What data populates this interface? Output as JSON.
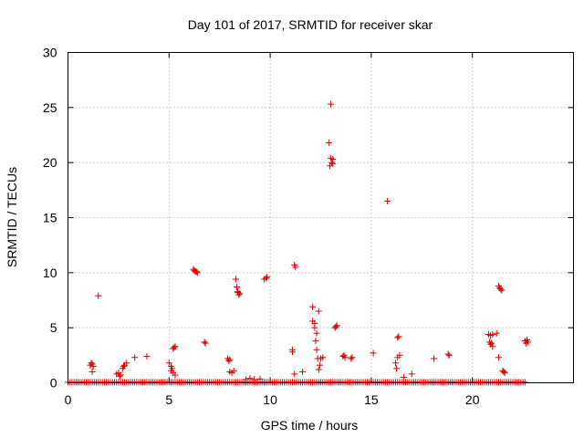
{
  "chart_data": {
    "type": "scatter",
    "title": "Day 101 of 2017, SRMTID for receiver skar",
    "xlabel": "GPS time / hours",
    "ylabel": "SRMTID / TECUs",
    "xlim": [
      0,
      25
    ],
    "ylim": [
      0,
      30
    ],
    "xticks": [
      "0",
      "5",
      "10",
      "15",
      "20"
    ],
    "xtick_values": [
      0,
      5,
      10,
      15,
      20
    ],
    "yticks": [
      "0",
      "5",
      "10",
      "15",
      "20",
      "25",
      "30"
    ],
    "ytick_values": [
      0,
      5,
      10,
      15,
      20,
      25,
      30
    ],
    "grid": true,
    "legend": "none",
    "marker": "+",
    "color": "#e00000",
    "baseline": {
      "x_start": 0.0,
      "x_end": 22.6,
      "step": 0.1,
      "y": 0.05
    },
    "points": [
      [
        1.1,
        1.6
      ],
      [
        1.15,
        1.8
      ],
      [
        1.2,
        1.7
      ],
      [
        1.25,
        1.5
      ],
      [
        1.2,
        1.0
      ],
      [
        1.5,
        7.9
      ],
      [
        2.4,
        0.8
      ],
      [
        2.5,
        0.9
      ],
      [
        2.55,
        0.6
      ],
      [
        2.6,
        0.7
      ],
      [
        2.7,
        1.3
      ],
      [
        2.8,
        1.6
      ],
      [
        2.9,
        1.8
      ],
      [
        2.75,
        1.5
      ],
      [
        3.3,
        2.3
      ],
      [
        3.9,
        2.4
      ],
      [
        5.0,
        1.8
      ],
      [
        5.1,
        1.5
      ],
      [
        5.15,
        1.3
      ],
      [
        5.2,
        0.9
      ],
      [
        5.3,
        0.7
      ],
      [
        5.2,
        3.1
      ],
      [
        5.3,
        3.3
      ],
      [
        5.25,
        3.2
      ],
      [
        5.1,
        1.1
      ],
      [
        6.2,
        10.3
      ],
      [
        6.25,
        10.2
      ],
      [
        6.3,
        10.1
      ],
      [
        6.35,
        10.1
      ],
      [
        6.4,
        10.0
      ],
      [
        6.8,
        3.6
      ],
      [
        6.75,
        3.7
      ],
      [
        7.9,
        2.2
      ],
      [
        8.0,
        2.1
      ],
      [
        7.95,
        2.0
      ],
      [
        8.0,
        1.0
      ],
      [
        8.1,
        0.9
      ],
      [
        8.2,
        1.1
      ],
      [
        8.3,
        9.4
      ],
      [
        8.35,
        8.7
      ],
      [
        8.4,
        8.2
      ],
      [
        8.45,
        8.0
      ],
      [
        8.5,
        8.1
      ],
      [
        8.4,
        8.3
      ],
      [
        8.8,
        0.3
      ],
      [
        9.0,
        0.4
      ],
      [
        9.2,
        0.3
      ],
      [
        9.5,
        0.35
      ],
      [
        9.7,
        9.4
      ],
      [
        9.8,
        9.5
      ],
      [
        9.85,
        9.6
      ],
      [
        11.1,
        3.0
      ],
      [
        11.1,
        2.8
      ],
      [
        11.2,
        0.8
      ],
      [
        11.2,
        10.7
      ],
      [
        11.25,
        10.5
      ],
      [
        11.6,
        1.0
      ],
      [
        12.1,
        6.9
      ],
      [
        12.1,
        5.6
      ],
      [
        12.2,
        5.4
      ],
      [
        12.2,
        5.0
      ],
      [
        12.25,
        3.8
      ],
      [
        12.3,
        3.0
      ],
      [
        12.3,
        4.5
      ],
      [
        12.4,
        6.5
      ],
      [
        12.35,
        2.2
      ],
      [
        12.45,
        1.6
      ],
      [
        12.4,
        1.2
      ],
      [
        12.6,
        2.3
      ],
      [
        12.5,
        2.2
      ],
      [
        12.9,
        21.8
      ],
      [
        13.0,
        25.3
      ],
      [
        13.0,
        20.4
      ],
      [
        13.05,
        20.0
      ],
      [
        13.1,
        20.3
      ],
      [
        12.95,
        19.7
      ],
      [
        13.1,
        19.9
      ],
      [
        13.2,
        5.0
      ],
      [
        13.3,
        5.2
      ],
      [
        13.25,
        5.1
      ],
      [
        13.6,
        2.4
      ],
      [
        13.7,
        2.3
      ],
      [
        13.65,
        2.5
      ],
      [
        14.0,
        2.2
      ],
      [
        14.05,
        2.3
      ],
      [
        15.1,
        2.7
      ],
      [
        15.8,
        16.5
      ],
      [
        16.2,
        1.8
      ],
      [
        16.25,
        1.3
      ],
      [
        16.3,
        4.1
      ],
      [
        16.35,
        4.2
      ],
      [
        16.3,
        2.3
      ],
      [
        16.4,
        2.5
      ],
      [
        16.6,
        0.5
      ],
      [
        17.0,
        0.8
      ],
      [
        18.1,
        2.2
      ],
      [
        18.8,
        2.6
      ],
      [
        18.85,
        2.5
      ],
      [
        20.8,
        4.4
      ],
      [
        20.9,
        4.3
      ],
      [
        21.0,
        4.4
      ],
      [
        20.85,
        3.7
      ],
      [
        20.9,
        3.5
      ],
      [
        21.0,
        3.3
      ],
      [
        20.95,
        3.6
      ],
      [
        21.2,
        4.5
      ],
      [
        21.3,
        2.3
      ],
      [
        21.3,
        8.8
      ],
      [
        21.35,
        8.6
      ],
      [
        21.4,
        8.5
      ],
      [
        21.45,
        8.4
      ],
      [
        21.5,
        1.1
      ],
      [
        21.6,
        0.9
      ],
      [
        21.55,
        1.0
      ],
      [
        22.6,
        3.8
      ],
      [
        22.65,
        3.6
      ],
      [
        22.7,
        3.9
      ],
      [
        22.75,
        3.7
      ]
    ]
  }
}
